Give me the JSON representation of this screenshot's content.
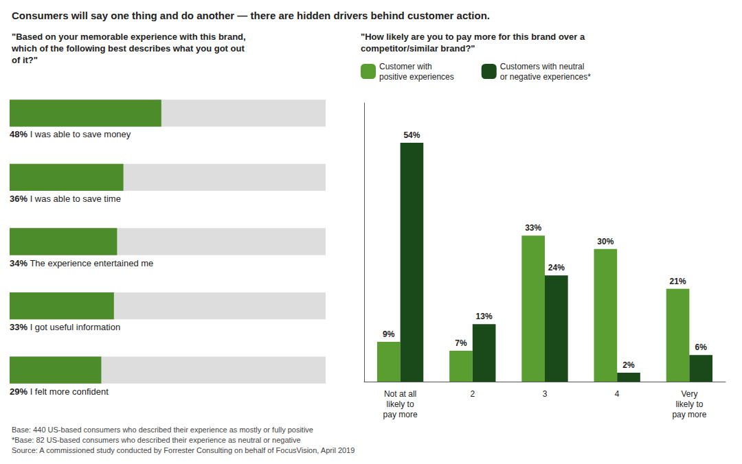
{
  "title": "Consumers will say one thing and do another — there are hidden drivers behind customer action.",
  "annotations": [
    "Base: 440 US-based consumers who described their experience as mostly or fully positive",
    "*Base: 82 US-based consumers who described their experience as neutral or negative",
    "Source: A commissioned study conducted by Forrester Consulting on behalf of FocusVision, April 2019"
  ],
  "chart_data": [
    {
      "type": "bar",
      "orientation": "horizontal",
      "title": "\"Based on your memorable experience with this brand,\nwhich of the following best describes what you got out\nof it?\"",
      "categories": [
        "I was able to save money",
        "I was able to save time",
        "The experience entertained me",
        "I got useful information",
        "I felt more confident"
      ],
      "values": [
        48,
        36,
        34,
        33,
        29
      ],
      "value_labels": [
        "48%",
        "36%",
        "34%",
        "33%",
        "29%"
      ],
      "data_labels": true,
      "color": "#4d8c2a",
      "xlim": [
        0,
        100
      ],
      "tick_labels": false,
      "grid": false
    },
    {
      "type": "bar",
      "title": "\"How likely are you to pay more for this brand over a\ncompetitor/similar brand?\"",
      "categories": [
        "Not at all\nlikely to\npay more",
        "2",
        "3",
        "4",
        "Very\nlikely to\npay more"
      ],
      "series": [
        {
          "name": "Customer with\npositive experiences",
          "color": "#5a9e32",
          "values": [
            9,
            7,
            33,
            30,
            21
          ],
          "value_labels": [
            "9%",
            "7%",
            "33%",
            "30%",
            "21%"
          ]
        },
        {
          "name": "Customers with neutral\nor negative experiences*",
          "color": "#1a4a1a",
          "values": [
            54,
            13,
            24,
            2,
            6
          ],
          "value_labels": [
            "54%",
            "13%",
            "24%",
            "2%",
            "6%"
          ]
        }
      ],
      "data_labels": true,
      "ylim": [
        0,
        63
      ],
      "tick_labels": "x",
      "legend": "top",
      "grid": false
    }
  ]
}
